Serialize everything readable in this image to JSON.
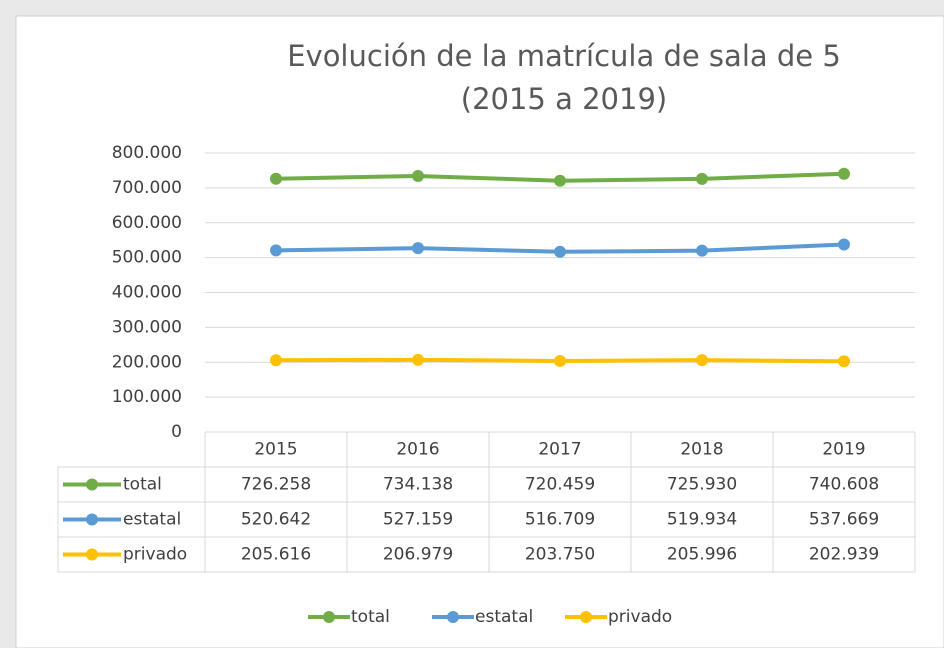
{
  "chart_data": {
    "type": "line",
    "title": "Evolución de la matrícula de sala de 5",
    "subtitle": "(2015 a 2019)",
    "categories": [
      "2015",
      "2016",
      "2017",
      "2018",
      "2019"
    ],
    "series": [
      {
        "name": "total",
        "color": "#70ad47",
        "values": [
          726258,
          734138,
          720459,
          725930,
          740608
        ],
        "value_labels": [
          "726.258",
          "734.138",
          "720.459",
          "725.930",
          "740.608"
        ]
      },
      {
        "name": "estatal",
        "color": "#5b9bd5",
        "values": [
          520642,
          527159,
          516709,
          519934,
          537669
        ],
        "value_labels": [
          "520.642",
          "527.159",
          "516.709",
          "519.934",
          "537.669"
        ]
      },
      {
        "name": "privado",
        "color": "#ffc000",
        "values": [
          205616,
          206979,
          203750,
          205996,
          202939
        ],
        "value_labels": [
          "205.616",
          "206.979",
          "203.750",
          "205.996",
          "202.939"
        ]
      }
    ],
    "ylim": [
      0,
      800000
    ],
    "yticks": [
      0,
      {
        "value": 100000,
        "label": "100.000"
      },
      {
        "value": 200000,
        "label": "200.000"
      },
      {
        "value": 300000,
        "label": "300.000"
      },
      {
        "value": 400000,
        "label": "400.000"
      },
      {
        "value": 500000,
        "label": "500.000"
      },
      {
        "value": 600000,
        "label": "600.000"
      },
      {
        "value": 700000,
        "label": "700.000"
      },
      {
        "value": 800000,
        "label": "800.000"
      }
    ],
    "grid": true,
    "legend": "bottom"
  }
}
